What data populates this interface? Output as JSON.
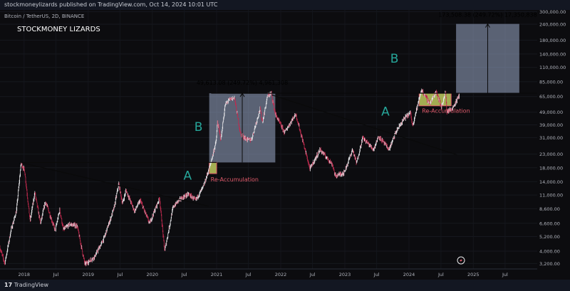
{
  "header": {
    "publisher_line": "stockmoneylizards published on TradingView.com, Oct 14, 2024 10:01 UTC"
  },
  "footer": {
    "brand_mark": "17",
    "brand": "TradingView"
  },
  "colors": {
    "background": "#0c0c0f",
    "candle_up": "#e7e7ea",
    "candle_down": "#c02a4e",
    "accent_green": "#26a69a",
    "accent_red": "#e05a6a",
    "box_blue": "#9aa9c8",
    "box_yellow": "#d6e36a"
  },
  "chart_data": {
    "type": "candlestick",
    "symbol_line": "Bitcoin / TetherUS, 2D, BINANCE",
    "watermark": "STOCKMONEY LIZARDS",
    "y_scale": "log",
    "ylim": [
      2900,
      310000
    ],
    "y_ticks": [
      300000,
      240000,
      180000,
      140000,
      110000,
      85000,
      65000,
      49000,
      39000,
      31000,
      23000,
      18000,
      14000,
      11000,
      8600,
      6600,
      5200,
      4000,
      3200
    ],
    "y_tick_labels": [
      "300,000.00",
      "240,000.00",
      "180,000.00",
      "140,000.00",
      "110,000.00",
      "85,000.00",
      "65,000.00",
      "49,000.00",
      "39,000.00",
      "31,000.00",
      "23,000.00",
      "18,000.00",
      "14,000.00",
      "11,000.00",
      "8,600.00",
      "6,600.00",
      "5,200.00",
      "4,000.00",
      "3,200.00"
    ],
    "xlim": [
      "2017-08-17",
      "2025-12-31"
    ],
    "x_ticks": [
      {
        "date": "2018-01-01",
        "label": "2018"
      },
      {
        "date": "2018-07-01",
        "label": "Jul"
      },
      {
        "date": "2019-01-01",
        "label": "2019"
      },
      {
        "date": "2019-07-01",
        "label": "Jul"
      },
      {
        "date": "2020-01-01",
        "label": "2020"
      },
      {
        "date": "2020-07-01",
        "label": "Jul"
      },
      {
        "date": "2021-01-01",
        "label": "2021"
      },
      {
        "date": "2021-07-01",
        "label": "Jul"
      },
      {
        "date": "2022-01-01",
        "label": "2022"
      },
      {
        "date": "2022-07-01",
        "label": "Jul"
      },
      {
        "date": "2023-01-01",
        "label": "2023"
      },
      {
        "date": "2023-07-01",
        "label": "Jul"
      },
      {
        "date": "2024-01-01",
        "label": "2024"
      },
      {
        "date": "2024-07-01",
        "label": "Jul"
      },
      {
        "date": "2025-01-01",
        "label": "2025"
      },
      {
        "date": "2025-07-01",
        "label": "Jul"
      }
    ],
    "price_path": [
      [
        "2017-08-17",
        4300
      ],
      [
        "2017-09-15",
        3200
      ],
      [
        "2017-10-20",
        5800
      ],
      [
        "2017-11-20",
        8200
      ],
      [
        "2017-12-17",
        19500
      ],
      [
        "2018-01-06",
        17000
      ],
      [
        "2018-02-06",
        6900
      ],
      [
        "2018-03-05",
        11500
      ],
      [
        "2018-04-06",
        6600
      ],
      [
        "2018-05-05",
        9800
      ],
      [
        "2018-06-29",
        5800
      ],
      [
        "2018-07-25",
        8400
      ],
      [
        "2018-08-14",
        5900
      ],
      [
        "2018-09-20",
        6500
      ],
      [
        "2018-11-01",
        6300
      ],
      [
        "2018-12-15",
        3150
      ],
      [
        "2019-02-08",
        3600
      ],
      [
        "2019-04-02",
        5000
      ],
      [
        "2019-05-30",
        8700
      ],
      [
        "2019-06-26",
        13500
      ],
      [
        "2019-07-17",
        9400
      ],
      [
        "2019-08-06",
        12000
      ],
      [
        "2019-09-24",
        8200
      ],
      [
        "2019-10-26",
        10000
      ],
      [
        "2019-12-18",
        6600
      ],
      [
        "2020-02-13",
        10400
      ],
      [
        "2020-03-13",
        4000
      ],
      [
        "2020-04-30",
        8800
      ],
      [
        "2020-06-01",
        10000
      ],
      [
        "2020-07-27",
        11200
      ],
      [
        "2020-09-05",
        10000
      ],
      [
        "2020-10-21",
        12900
      ],
      [
        "2020-11-30",
        19500
      ],
      [
        "2020-12-31",
        29000
      ],
      [
        "2021-01-08",
        41000
      ],
      [
        "2021-01-27",
        30000
      ],
      [
        "2021-02-21",
        56000
      ],
      [
        "2021-03-13",
        61000
      ],
      [
        "2021-04-14",
        64000
      ],
      [
        "2021-05-19",
        33000
      ],
      [
        "2021-06-22",
        30000
      ],
      [
        "2021-07-20",
        29800
      ],
      [
        "2021-09-07",
        52000
      ],
      [
        "2021-09-21",
        41000
      ],
      [
        "2021-10-20",
        66000
      ],
      [
        "2021-11-10",
        69000
      ],
      [
        "2021-12-04",
        47000
      ],
      [
        "2022-01-24",
        34000
      ],
      [
        "2022-03-29",
        47500
      ],
      [
        "2022-05-12",
        28000
      ],
      [
        "2022-06-18",
        17600
      ],
      [
        "2022-08-15",
        25000
      ],
      [
        "2022-10-25",
        19000
      ],
      [
        "2022-11-09",
        15500
      ],
      [
        "2022-12-30",
        16500
      ],
      [
        "2023-02-16",
        25000
      ],
      [
        "2023-03-10",
        19500
      ],
      [
        "2023-04-14",
        31000
      ],
      [
        "2023-06-15",
        25000
      ],
      [
        "2023-07-14",
        31800
      ],
      [
        "2023-09-11",
        25000
      ],
      [
        "2023-10-24",
        35000
      ],
      [
        "2023-12-08",
        44000
      ],
      [
        "2024-01-11",
        48500
      ],
      [
        "2024-01-23",
        38500
      ],
      [
        "2024-03-14",
        73500
      ],
      [
        "2024-05-01",
        57000
      ],
      [
        "2024-06-06",
        72000
      ],
      [
        "2024-07-05",
        53500
      ],
      [
        "2024-07-29",
        70000
      ],
      [
        "2024-08-05",
        49500
      ],
      [
        "2024-09-06",
        52500
      ],
      [
        "2024-10-14",
        66000
      ]
    ],
    "annotations": {
      "resistance_level": 69000,
      "support_level": 19800,
      "downtrend_1": [
        [
          "2017-12-17",
          19700
        ],
        [
          "2020-11-15",
          9000
        ]
      ],
      "downtrend_2": [
        [
          "2021-11-10",
          67000
        ],
        [
          "2024-10-01",
          22700
        ]
      ],
      "measure_1": {
        "from": [
          "2020-11-20",
          19800
        ],
        "to": [
          "2021-12-01",
          69000
        ],
        "label": "49,613.08 (249.72%) 4,961,308"
      },
      "measure_2": {
        "from": [
          "2024-09-25",
          69000
        ],
        "to": [
          "2025-09-20",
          241000
        ],
        "label": "173,508.38 (249.72%) 17,350,838"
      },
      "reaccum_1": {
        "from": [
          "2020-11-20",
          16200
        ],
        "to": [
          "2021-01-01",
          19800
        ],
        "label": "Re-Accumulation"
      },
      "reaccum_2": {
        "from": [
          "2024-02-28",
          55000
        ],
        "to": [
          "2024-08-28",
          69000
        ],
        "label": "Re-Accumulation"
      },
      "letters": [
        {
          "text": "A",
          "at": [
            "2020-07-20",
            14500
          ]
        },
        {
          "text": "B",
          "at": [
            "2020-09-20",
            35000
          ]
        },
        {
          "text": "A",
          "at": [
            "2023-08-20",
            46000
          ]
        },
        {
          "text": "B",
          "at": [
            "2023-10-10",
            120000
          ]
        }
      ]
    }
  }
}
